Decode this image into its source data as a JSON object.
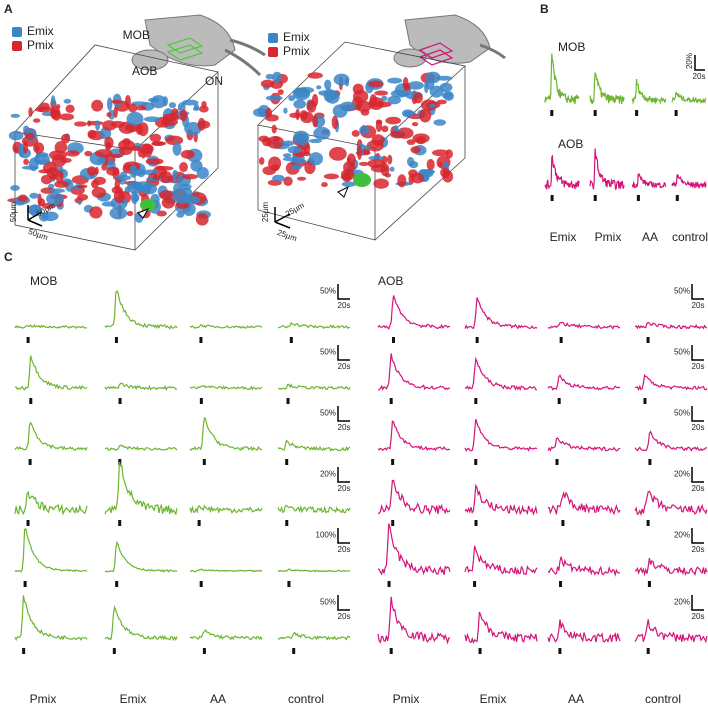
{
  "panel_a": {
    "label": "A",
    "legend": [
      {
        "name": "Emix",
        "color": "#3b86c8"
      },
      {
        "name": "Pmix",
        "color": "#d7262e"
      }
    ],
    "left": {
      "mob": "MOB",
      "aob": "AOB",
      "on": "ON",
      "scale": [
        "50µm",
        "50µm",
        "50µm"
      ]
    },
    "right": {
      "scale": [
        "25µm",
        "25µm",
        "25µm"
      ]
    }
  },
  "panel_b": {
    "label": "B",
    "scale_y": {
      "value": 20,
      "label": "20%"
    },
    "scale_x": "20s",
    "stimuli": [
      "Emix",
      "Pmix",
      "AA",
      "control"
    ],
    "rows": [
      {
        "name": "MOB",
        "color": "#6cb52f",
        "peaks": [
          60,
          40,
          25,
          10
        ]
      },
      {
        "name": "AOB",
        "color": "#d4147a",
        "peaks": [
          40,
          45,
          15,
          15
        ]
      }
    ]
  },
  "panel_c": {
    "label": "C",
    "stimuli": [
      "Pmix",
      "Emix",
      "AA",
      "control"
    ],
    "groups": [
      {
        "name": "MOB",
        "color": "#6cb52f",
        "rows": [
          {
            "scale_y": {
              "value": 50,
              "label": "50%"
            },
            "scale_x": "20s",
            "peaks": [
              5,
              130,
              5,
              15
            ]
          },
          {
            "scale_y": {
              "value": 50,
              "label": "50%"
            },
            "scale_x": "20s",
            "peaks": [
              110,
              15,
              10,
              10
            ]
          },
          {
            "scale_y": {
              "value": 50,
              "label": "50%"
            },
            "scale_x": "20s",
            "peaks": [
              95,
              10,
              110,
              25
            ]
          },
          {
            "scale_y": {
              "value": 20,
              "label": "20%"
            },
            "scale_x": "20s",
            "peaks": [
              25,
              70,
              5,
              5
            ]
          },
          {
            "scale_y": {
              "value": 100,
              "label": "100%"
            },
            "scale_x": "20s",
            "peaks": [
              300,
              200,
              10,
              10
            ]
          },
          {
            "scale_y": {
              "value": 50,
              "label": "50%"
            },
            "scale_x": "20s",
            "peaks": [
              140,
              110,
              25,
              15
            ]
          }
        ]
      },
      {
        "name": "AOB",
        "color": "#d4147a",
        "rows": [
          {
            "scale_y": {
              "value": 50,
              "label": "50%"
            },
            "scale_x": "20s",
            "peaks": [
              110,
              100,
              15,
              15
            ]
          },
          {
            "scale_y": {
              "value": 50,
              "label": "50%"
            },
            "scale_x": "20s",
            "peaks": [
              110,
              100,
              40,
              40
            ]
          },
          {
            "scale_y": {
              "value": 50,
              "label": "50%"
            },
            "scale_x": "20s",
            "peaks": [
              100,
              100,
              40,
              60
            ]
          },
          {
            "scale_y": {
              "value": 20,
              "label": "20%"
            },
            "scale_x": "20s",
            "peaks": [
              40,
              30,
              25,
              25
            ]
          },
          {
            "scale_y": {
              "value": 20,
              "label": "20%"
            },
            "scale_x": "20s",
            "peaks": [
              60,
              30,
              15,
              15
            ]
          },
          {
            "scale_y": {
              "value": 20,
              "label": "20%"
            },
            "scale_x": "20s",
            "peaks": [
              50,
              35,
              20,
              20
            ]
          }
        ]
      }
    ]
  }
}
